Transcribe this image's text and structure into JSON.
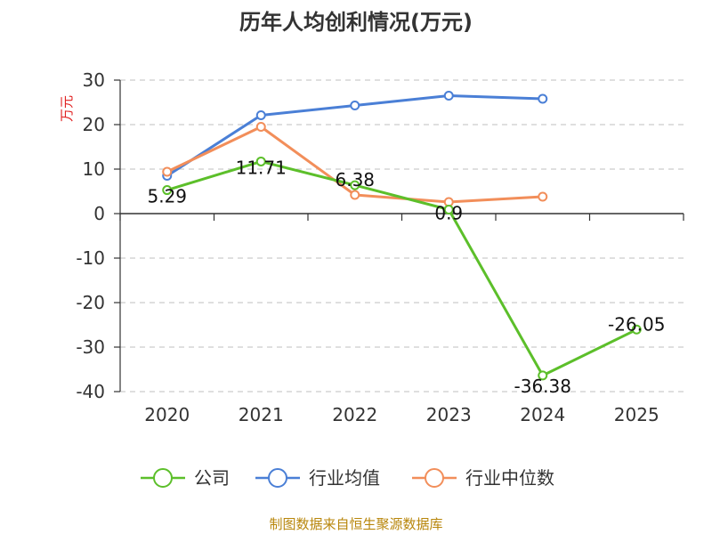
{
  "chart_data": {
    "type": "line",
    "title": "历年人均创利情况(万元)",
    "ylabel": "万元",
    "xlabel": "",
    "categories": [
      "2020",
      "2021",
      "2022",
      "2023",
      "2024",
      "2025"
    ],
    "ylim": [
      -40,
      30
    ],
    "yticks": [
      30,
      20,
      10,
      0,
      -10,
      -20,
      -30,
      -40
    ],
    "grid": true,
    "legend_position": "bottom",
    "series": [
      {
        "name": "公司",
        "color": "#5cbf2a",
        "values": [
          5.29,
          11.71,
          6.38,
          0.9,
          -36.38,
          -26.05
        ],
        "labels": [
          "5.29",
          "11.71",
          "6.38",
          "0.9",
          "-36.38",
          "-26.05"
        ]
      },
      {
        "name": "行业均值",
        "color": "#4a7fd6",
        "values": [
          8.5,
          22.1,
          24.3,
          26.5,
          25.8,
          null
        ]
      },
      {
        "name": "行业中位数",
        "color": "#f28e5a",
        "values": [
          9.4,
          19.5,
          4.2,
          2.6,
          3.8,
          null
        ]
      }
    ],
    "source": "制图数据来自恒生聚源数据库"
  }
}
